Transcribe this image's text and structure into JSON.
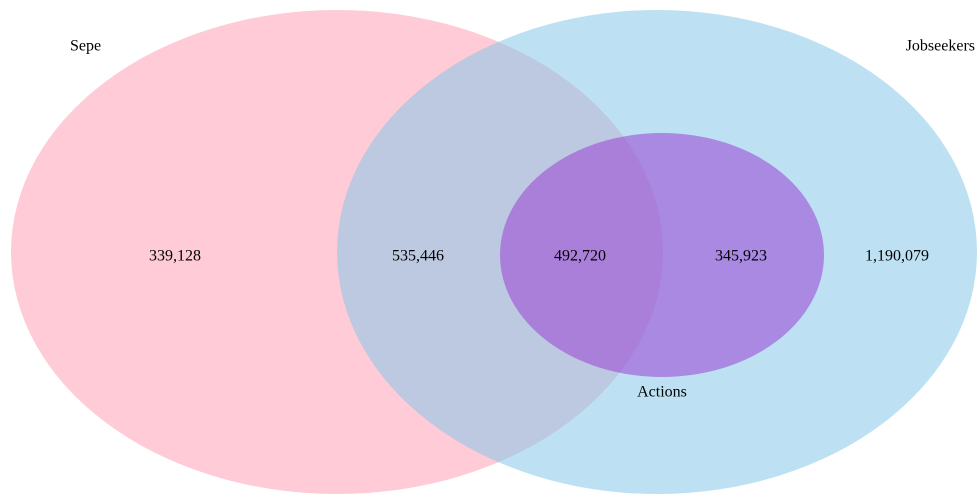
{
  "sets": [
    {
      "label": "Sepe"
    },
    {
      "label": "Jobseekers"
    },
    {
      "label": "Actions"
    }
  ],
  "regions": [
    {
      "label": "339,128"
    },
    {
      "label": "535,446"
    },
    {
      "label": "492,720"
    },
    {
      "label": "345,923"
    },
    {
      "label": "1,190,079"
    }
  ]
}
